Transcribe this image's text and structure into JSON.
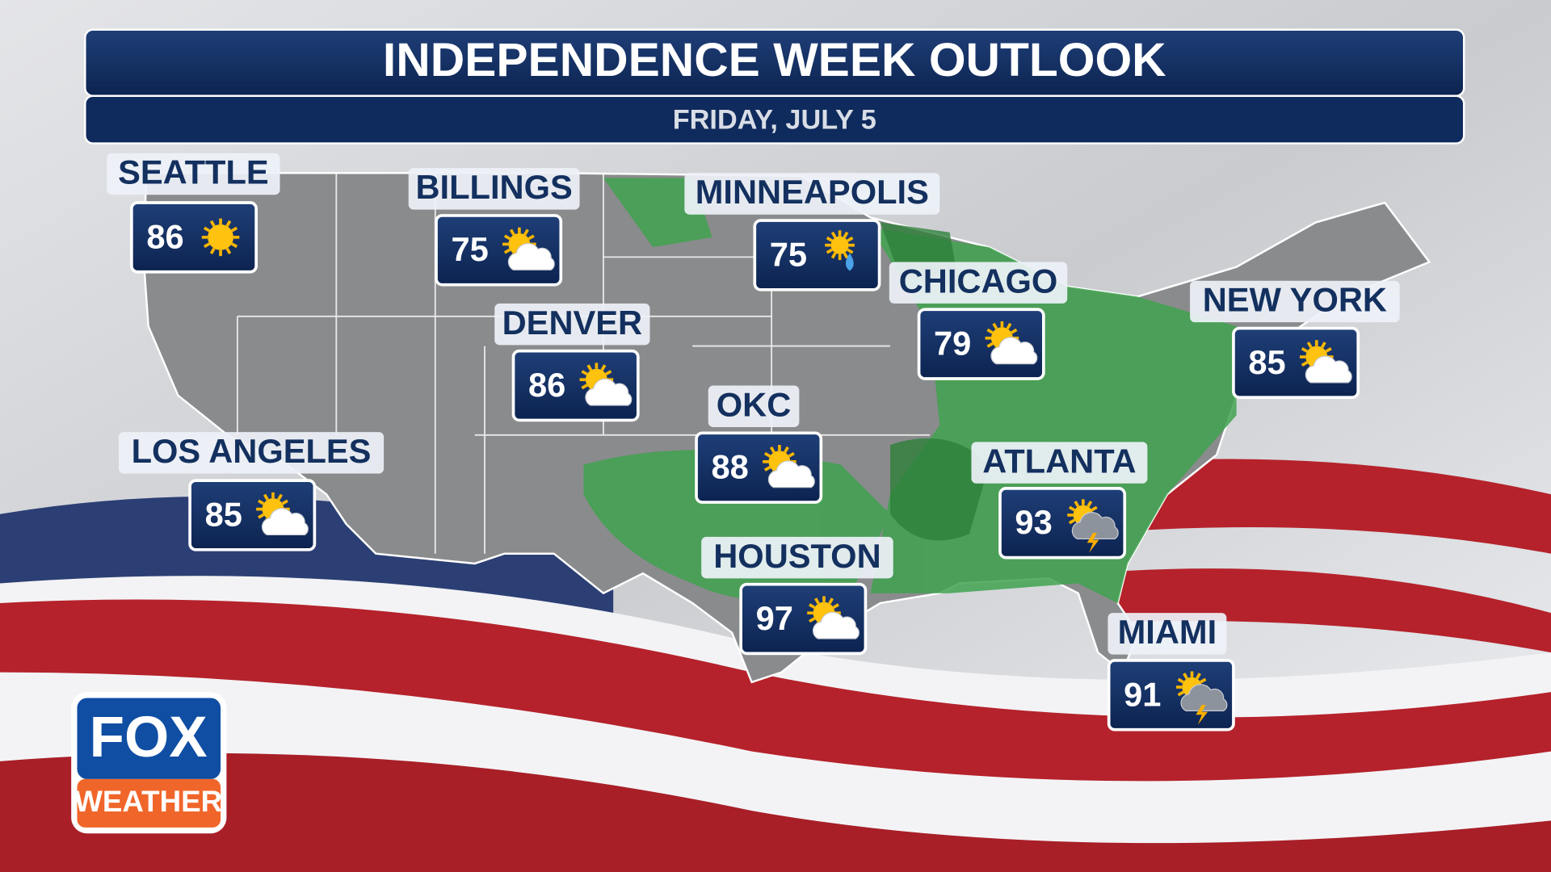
{
  "header": {
    "title": "INDEPENDENCE WEEK OUTLOOK",
    "subtitle": "FRIDAY, JULY 5"
  },
  "cities": [
    {
      "name": "SEATTLE",
      "temp": 86
    },
    {
      "name": "BILLINGS",
      "temp": 75
    },
    {
      "name": "MINNEAPOLIS",
      "temp": 75
    },
    {
      "name": "DENVER",
      "temp": 86
    },
    {
      "name": "CHICAGO",
      "temp": 79
    },
    {
      "name": "NEW YORK",
      "temp": 85
    },
    {
      "name": "OKC",
      "temp": 88
    },
    {
      "name": "LOS ANGELES",
      "temp": 85
    },
    {
      "name": "ATLANTA",
      "temp": 93
    },
    {
      "name": "HOUSTON",
      "temp": 97
    },
    {
      "name": "MIAMI",
      "temp": 91
    }
  ],
  "logo": {
    "brand": "FOX",
    "label": "WEATHER"
  }
}
